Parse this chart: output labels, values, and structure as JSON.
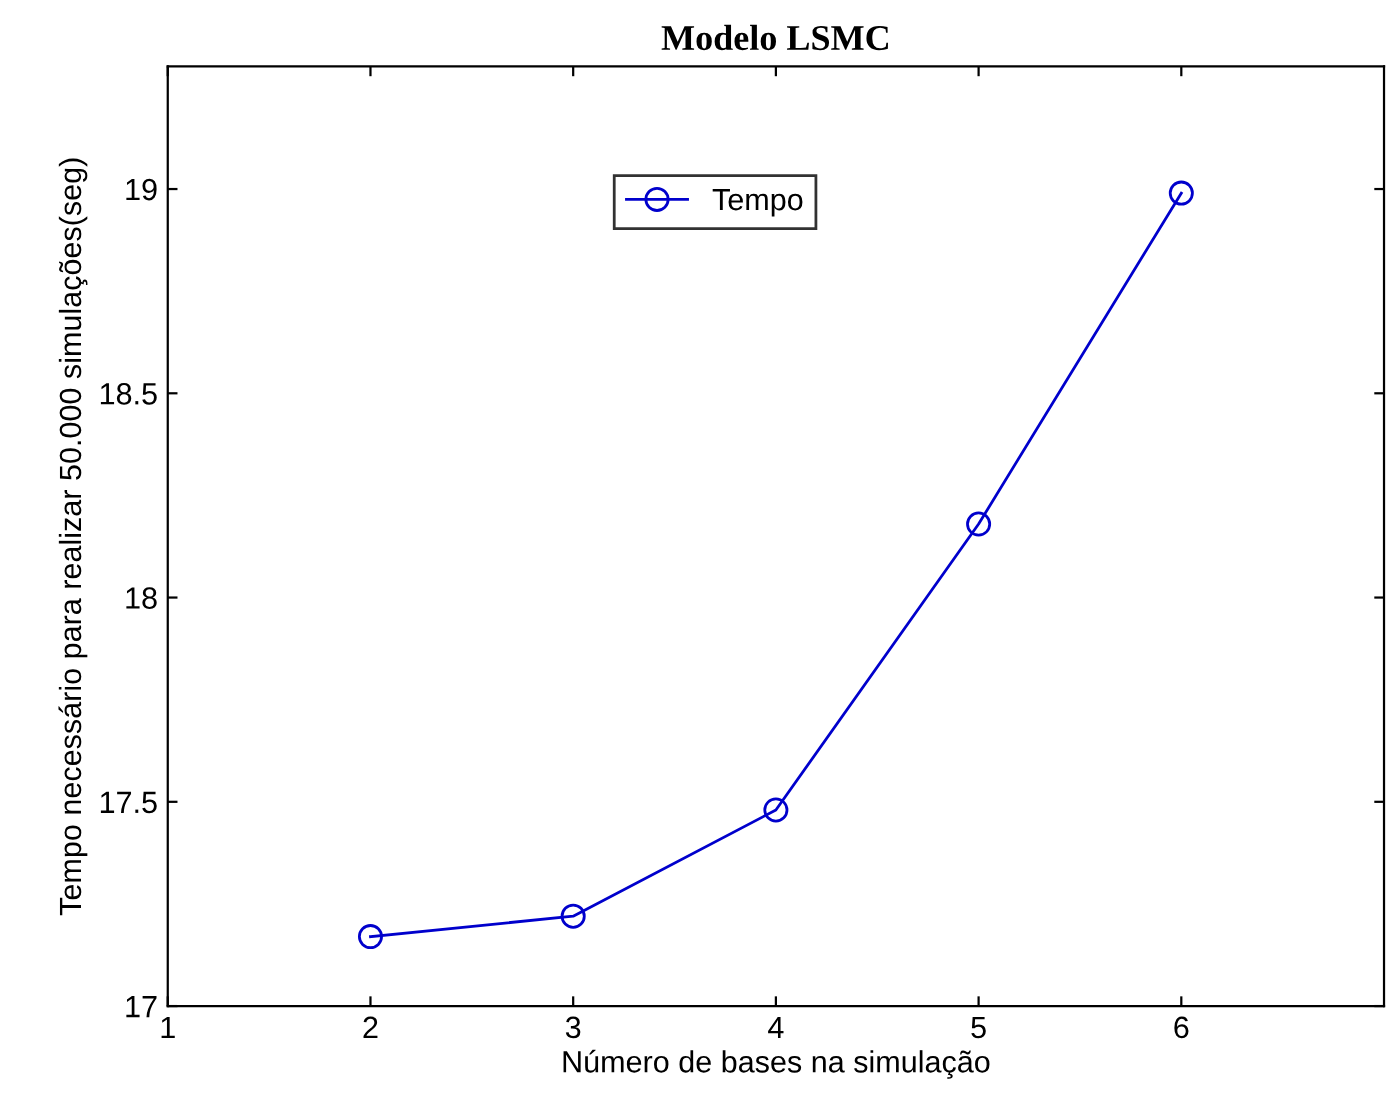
{
  "chart_data": {
    "type": "line",
    "title": "Modelo LSMC",
    "xlabel": "Número de bases na simulação",
    "ylabel": "Tempo necessário para realizar 50.000 simulações(seg)",
    "x": [
      2,
      3,
      4,
      5,
      6
    ],
    "series": [
      {
        "name": "Tempo",
        "color": "#0000cc",
        "values": [
          17.17,
          17.22,
          17.48,
          18.18,
          18.99
        ]
      }
    ],
    "xlim": [
      1,
      7
    ],
    "xticks": [
      1,
      2,
      3,
      4,
      5,
      6
    ],
    "ylim": [
      17,
      19.3
    ],
    "yticks": [
      17,
      17.5,
      18,
      18.5,
      19
    ],
    "grid": false,
    "legend": "top",
    "marker": "circle",
    "line_style": "solid"
  }
}
